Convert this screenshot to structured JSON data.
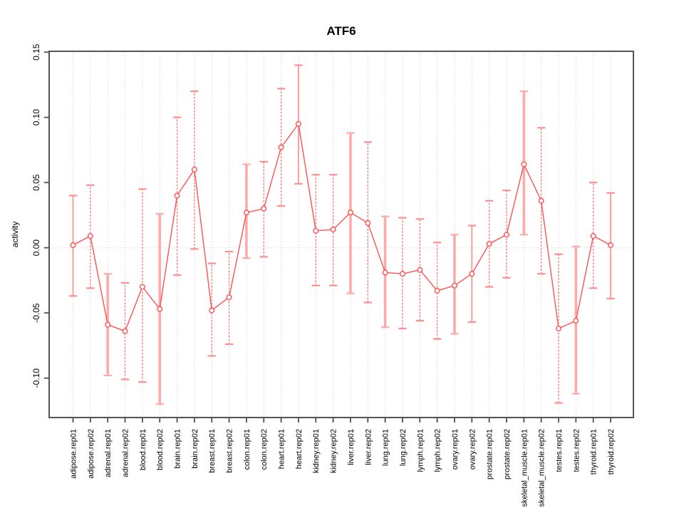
{
  "colors": {
    "series_line": "#ff5151",
    "point_stroke": "#ff5151",
    "error_bar_solid": "#ff8f8f",
    "error_bar_thick": "#ffaaaa",
    "error_bar_dashed": "#f97b7b",
    "grid": "#d6d6d6",
    "axis_box": "#555555",
    "tick": "#4f4f4f",
    "text": "#000000",
    "background": "#ffffff"
  },
  "chart_data": {
    "type": "line",
    "title": "ATF6",
    "xlabel": "",
    "ylabel": "activity",
    "ylim": [
      -0.13,
      0.151
    ],
    "point_marker": "open-circle",
    "error_bars": true,
    "legend": "none",
    "grid": "vertical dotted gridline at each category; dotted horizontal line at y=0",
    "yticks": [
      {
        "label": "0.15",
        "value": 0.15
      },
      {
        "label": "0.10",
        "value": 0.1
      },
      {
        "label": "0.05",
        "value": 0.05
      },
      {
        "label": "0.00",
        "value": 0.0
      },
      {
        "label": "-0.05",
        "value": -0.05
      },
      {
        "label": "-0.10",
        "value": -0.1
      }
    ],
    "categories": [
      "adipose.rep01",
      "adipose.rep02",
      "adrenal.rep01",
      "adrenal.rep02",
      "blood.rep01",
      "blood.rep02",
      "brain.rep01",
      "brain.rep02",
      "breast.rep01",
      "breast.rep02",
      "colon.rep01",
      "colon.rep02",
      "heart.rep01",
      "heart.rep02",
      "kidney.rep01",
      "kidney.rep02",
      "liver.rep01",
      "liver.rep02",
      "lung.rep01",
      "lung.rep02",
      "lymph.rep01",
      "lymph.rep02",
      "ovary.rep01",
      "ovary.rep02",
      "prostate.rep01",
      "prostate.rep02",
      "skeletal_muscle.rep01",
      "skeletal_muscle.rep02",
      "testes.rep01",
      "testes.rep02",
      "thyroid.rep01",
      "thyroid.rep02"
    ],
    "series": [
      {
        "name": "ATF6 activity",
        "values": [
          0.002,
          0.009,
          -0.059,
          -0.064,
          -0.03,
          -0.047,
          0.04,
          0.06,
          -0.048,
          -0.038,
          0.027,
          0.03,
          0.077,
          0.095,
          0.013,
          0.014,
          0.027,
          0.019,
          -0.019,
          -0.02,
          -0.017,
          -0.033,
          -0.029,
          -0.02,
          0.003,
          0.01,
          0.064,
          0.036,
          -0.062,
          -0.056,
          0.009,
          0.002
        ]
      }
    ],
    "error_low": [
      -0.037,
      -0.031,
      -0.098,
      -0.101,
      -0.103,
      -0.12,
      -0.021,
      -0.001,
      -0.083,
      -0.074,
      -0.008,
      -0.007,
      0.032,
      0.049,
      -0.029,
      -0.029,
      -0.035,
      -0.042,
      -0.061,
      -0.062,
      -0.056,
      -0.07,
      -0.066,
      -0.057,
      -0.03,
      -0.023,
      0.01,
      -0.02,
      -0.119,
      -0.112,
      -0.031,
      -0.039
    ],
    "error_high": [
      0.04,
      0.048,
      -0.02,
      -0.027,
      0.045,
      0.026,
      0.1,
      0.12,
      -0.012,
      -0.003,
      0.064,
      0.066,
      0.122,
      0.14,
      0.056,
      0.056,
      0.088,
      0.081,
      0.024,
      0.023,
      0.022,
      0.004,
      0.01,
      0.017,
      0.036,
      0.044,
      0.12,
      0.092,
      -0.005,
      0.001,
      0.05,
      0.042
    ],
    "error_bar_styles": [
      "solid",
      "dashed",
      "thick",
      "dashed",
      "dashed",
      "thick",
      "dashed",
      "dashed",
      "dashed",
      "dashed",
      "thick",
      "dashed",
      "dashed",
      "solid",
      "dashed",
      "dashed",
      "thick",
      "dashed",
      "thick",
      "dashed",
      "dashed",
      "dashed",
      "thick",
      "solid",
      "dashed",
      "dashed",
      "thick",
      "dashed",
      "dashed",
      "thick",
      "dashed",
      "solid"
    ]
  }
}
